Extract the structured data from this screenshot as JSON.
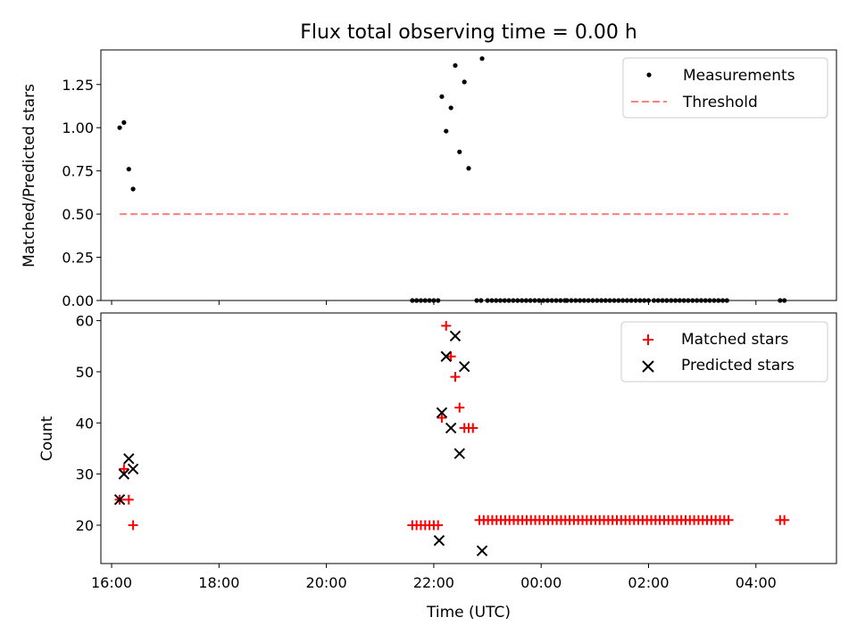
{
  "chart_data": [
    {
      "type": "scatter",
      "title": "Flux total observing time = 0.00 h",
      "xlabel": "",
      "ylabel": "Matched/Predicted stars",
      "x_unit": "hours since 16:00 UTC",
      "xlim": [
        -0.2,
        13.5
      ],
      "ylim": [
        0,
        1.45
      ],
      "yticks": [
        0.0,
        0.25,
        0.5,
        0.75,
        1.0,
        1.25
      ],
      "ytick_labels": [
        "0.00",
        "0.25",
        "0.50",
        "0.75",
        "1.00",
        "1.25"
      ],
      "legend_position": "top-right",
      "series": [
        {
          "name": "Measurements",
          "marker": "dot",
          "color": "#000000",
          "points": [
            [
              0.15,
              1.0
            ],
            [
              0.23,
              1.03
            ],
            [
              0.32,
              0.76
            ],
            [
              0.4,
              0.645
            ],
            [
              6.15,
              1.18
            ],
            [
              6.23,
              0.98
            ],
            [
              6.32,
              1.115
            ],
            [
              6.4,
              1.36
            ],
            [
              6.48,
              0.86
            ],
            [
              6.57,
              1.265
            ],
            [
              6.65,
              0.765
            ],
            [
              6.9,
              1.4
            ]
          ],
          "zero_x_ranges": [
            [
              5.6,
              6.1,
              0.08
            ],
            [
              6.8,
              6.9,
              0.08
            ],
            [
              7.0,
              8.48,
              0.08
            ],
            [
              8.48,
              10.0,
              0.08
            ],
            [
              10.1,
              11.5,
              0.08
            ],
            [
              12.45,
              12.6,
              0.08
            ]
          ]
        },
        {
          "name": "Threshold",
          "style": "dashed",
          "color": "#ff8080",
          "x": [
            0.15,
            12.6
          ],
          "y": [
            0.5,
            0.5
          ]
        }
      ]
    },
    {
      "type": "scatter",
      "title": "",
      "xlabel": "Time (UTC)",
      "ylabel": "Count",
      "x_unit": "hours since 16:00 UTC",
      "xlim": [
        -0.2,
        13.5
      ],
      "ylim": [
        12.5,
        61.5
      ],
      "yticks": [
        20,
        30,
        40,
        50,
        60
      ],
      "ytick_labels": [
        "20",
        "30",
        "40",
        "50",
        "60"
      ],
      "xticks": [
        0,
        2,
        4,
        6,
        8,
        10,
        12
      ],
      "xtick_labels": [
        "16:00",
        "18:00",
        "20:00",
        "22:00",
        "00:00",
        "02:00",
        "04:00"
      ],
      "legend_position": "top-right",
      "series": [
        {
          "name": "Matched stars",
          "marker": "plus",
          "color": "#ff0000",
          "points": [
            [
              0.15,
              25
            ],
            [
              0.23,
              31
            ],
            [
              0.32,
              25
            ],
            [
              0.4,
              20
            ],
            [
              6.15,
              41
            ],
            [
              6.23,
              59
            ],
            [
              6.32,
              53
            ],
            [
              6.4,
              49
            ],
            [
              6.48,
              43
            ],
            [
              6.57,
              39
            ],
            [
              6.65,
              39
            ],
            [
              6.73,
              39
            ]
          ],
          "constant_ranges": [
            [
              5.6,
              6.1,
              0.08,
              20
            ],
            [
              6.85,
              11.5,
              0.08,
              21
            ],
            [
              12.45,
              12.6,
              0.08,
              21
            ]
          ]
        },
        {
          "name": "Predicted stars",
          "marker": "x",
          "color": "#000000",
          "points": [
            [
              0.15,
              25
            ],
            [
              0.23,
              30
            ],
            [
              0.32,
              33
            ],
            [
              0.4,
              31
            ],
            [
              6.1,
              17
            ],
            [
              6.15,
              42
            ],
            [
              6.23,
              53
            ],
            [
              6.32,
              39
            ],
            [
              6.4,
              57
            ],
            [
              6.48,
              34
            ],
            [
              6.57,
              51
            ],
            [
              6.9,
              15
            ]
          ]
        }
      ]
    }
  ]
}
